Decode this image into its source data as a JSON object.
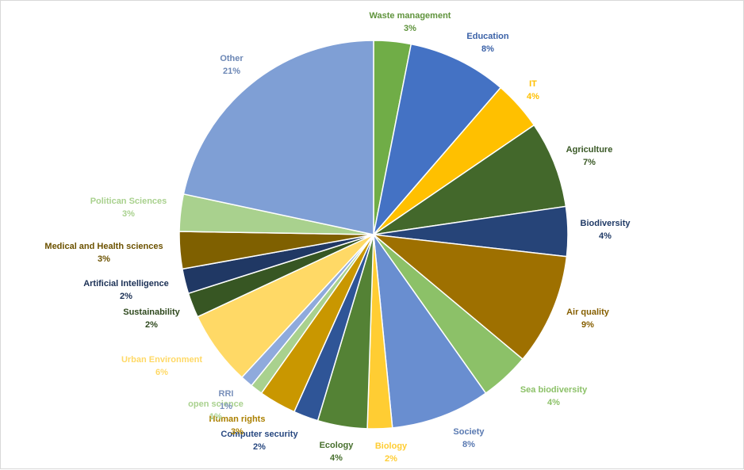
{
  "chart_data": {
    "type": "pie",
    "title": "",
    "slices": [
      {
        "label": "Waste management",
        "value": 3,
        "value_label": "3%",
        "color": "#70ad47"
      },
      {
        "label": "Education",
        "value": 8,
        "value_label": "8%",
        "color": "#4472c4"
      },
      {
        "label": "IT",
        "value": 4,
        "value_label": "4%",
        "color": "#ffc000"
      },
      {
        "label": "Agriculture",
        "value": 7,
        "value_label": "7%",
        "color": "#43682b"
      },
      {
        "label": "Biodiversity",
        "value": 4,
        "value_label": "4%",
        "color": "#264478"
      },
      {
        "label": "Air quality",
        "value": 9,
        "value_label": "9%",
        "color": "#9e7000"
      },
      {
        "label": "Sea biodiversity",
        "value": 4,
        "value_label": "4%",
        "color": "#8cc168"
      },
      {
        "label": "Society",
        "value": 8,
        "value_label": "8%",
        "color": "#698ed0"
      },
      {
        "label": "Biology",
        "value": 2,
        "value_label": "2%",
        "color": "#ffcd33"
      },
      {
        "label": "Ecology",
        "value": 4,
        "value_label": "4%",
        "color": "#548235"
      },
      {
        "label": "Computer security",
        "value": 2,
        "value_label": "2%",
        "color": "#2f5597"
      },
      {
        "label": "Human rights",
        "value": 3,
        "value_label": "3%",
        "color": "#c99700"
      },
      {
        "label": "open science",
        "value": 1,
        "value_label": "1%",
        "color": "#a9d18e"
      },
      {
        "label": "RRI",
        "value": 1,
        "value_label": "1%",
        "color": "#8faadc"
      },
      {
        "label": "Urban Environment",
        "value": 6,
        "value_label": "6%",
        "color": "#ffd966"
      },
      {
        "label": "Sustainability",
        "value": 2,
        "value_label": "2%",
        "color": "#375623"
      },
      {
        "label": "Artificial Intelligence",
        "value": 2,
        "value_label": "2%",
        "color": "#203864"
      },
      {
        "label": "Medical and Health sciences",
        "value": 3,
        "value_label": "3%",
        "color": "#7f6000"
      },
      {
        "label": "Politican Sciences",
        "value": 3,
        "value_label": "3%",
        "color": "#a9d18e"
      },
      {
        "label": "Other",
        "value": 21,
        "value_label": "21%",
        "color": "#7f9fd5"
      }
    ]
  }
}
